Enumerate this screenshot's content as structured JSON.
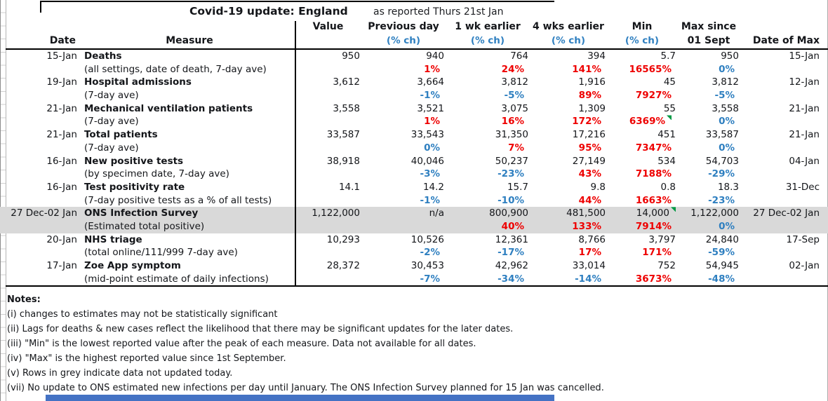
{
  "title": {
    "main": "Covid-19 update: England",
    "sub": "as reported Thurs 21st Jan"
  },
  "header": {
    "date": "Date",
    "measure": "Measure",
    "value": "Value",
    "cols": [
      {
        "line1": "Previous day",
        "line2": "(% ch)"
      },
      {
        "line1": "1 wk earlier",
        "line2": "(% ch)"
      },
      {
        "line1": "4 wks earlier",
        "line2": "(% ch)"
      },
      {
        "line1": "Min",
        "line2": "(% ch)"
      },
      {
        "line1": "Max since",
        "line2": "01 Sept"
      }
    ],
    "date_of_max": "Date of Max"
  },
  "rows": [
    {
      "date": "15-Jan",
      "measure": "Deaths",
      "detail": "(all settings, date of death, 7-day ave)",
      "value": "950",
      "prev": {
        "v": "940",
        "pct": "1%",
        "c": "red"
      },
      "wk1": {
        "v": "764",
        "pct": "24%",
        "c": "red"
      },
      "wk4": {
        "v": "394",
        "pct": "141%",
        "c": "red"
      },
      "min": {
        "v": "5.7",
        "pct": "16565%",
        "c": "red",
        "flag": ""
      },
      "max": {
        "v": "950",
        "pct": "0%",
        "c": "blue"
      },
      "dateOfMax": "15-Jan",
      "grey": false
    },
    {
      "date": "19-Jan",
      "measure": "Hospital admissions",
      "detail": "(7-day ave)",
      "value": "3,612",
      "prev": {
        "v": "3,664",
        "pct": "-1%",
        "c": "blue"
      },
      "wk1": {
        "v": "3,812",
        "pct": "-5%",
        "c": "blue"
      },
      "wk4": {
        "v": "1,916",
        "pct": "89%",
        "c": "red"
      },
      "min": {
        "v": "45",
        "pct": "7927%",
        "c": "red",
        "flag": ""
      },
      "max": {
        "v": "3,812",
        "pct": "-5%",
        "c": "blue"
      },
      "dateOfMax": "12-Jan",
      "grey": false
    },
    {
      "date": "21-Jan",
      "measure": "Mechanical ventilation patients",
      "detail": "(7-day ave)",
      "value": "3,558",
      "prev": {
        "v": "3,521",
        "pct": "1%",
        "c": "red"
      },
      "wk1": {
        "v": "3,075",
        "pct": "16%",
        "c": "red"
      },
      "wk4": {
        "v": "1,309",
        "pct": "172%",
        "c": "red"
      },
      "min": {
        "v": "55",
        "pct": "6369%",
        "c": "red",
        "flag": "pct"
      },
      "max": {
        "v": "3,558",
        "pct": "0%",
        "c": "blue"
      },
      "dateOfMax": "21-Jan",
      "grey": false
    },
    {
      "date": "21-Jan",
      "measure": "Total patients",
      "detail": "(7-day ave)",
      "value": "33,587",
      "prev": {
        "v": "33,543",
        "pct": "0%",
        "c": "blue"
      },
      "wk1": {
        "v": "31,350",
        "pct": "7%",
        "c": "red"
      },
      "wk4": {
        "v": "17,216",
        "pct": "95%",
        "c": "red"
      },
      "min": {
        "v": "451",
        "pct": "7347%",
        "c": "red",
        "flag": ""
      },
      "max": {
        "v": "33,587",
        "pct": "0%",
        "c": "blue"
      },
      "dateOfMax": "21-Jan",
      "grey": false
    },
    {
      "date": "16-Jan",
      "measure": "New positive tests",
      "detail": "(by specimen date, 7-day ave)",
      "value": "38,918",
      "prev": {
        "v": "40,046",
        "pct": "-3%",
        "c": "blue"
      },
      "wk1": {
        "v": "50,237",
        "pct": "-23%",
        "c": "blue"
      },
      "wk4": {
        "v": "27,149",
        "pct": "43%",
        "c": "red"
      },
      "min": {
        "v": "534",
        "pct": "7188%",
        "c": "red",
        "flag": ""
      },
      "max": {
        "v": "54,703",
        "pct": "-29%",
        "c": "blue"
      },
      "dateOfMax": "04-Jan",
      "grey": false
    },
    {
      "date": "16-Jan",
      "measure": "Test positivity rate",
      "detail": "(7-day positive tests as a % of all tests)",
      "value": "14.1",
      "prev": {
        "v": "14.2",
        "pct": "-1%",
        "c": "blue"
      },
      "wk1": {
        "v": "15.7",
        "pct": "-10%",
        "c": "blue"
      },
      "wk4": {
        "v": "9.8",
        "pct": "44%",
        "c": "red"
      },
      "min": {
        "v": "0.8",
        "pct": "1663%",
        "c": "red",
        "flag": ""
      },
      "max": {
        "v": "18.3",
        "pct": "-23%",
        "c": "blue"
      },
      "dateOfMax": "31-Dec",
      "grey": false
    },
    {
      "date": "27 Dec-02 Jan",
      "measure": "ONS Infection Survey",
      "detail": "(Estimated total positive)",
      "value": "1,122,000",
      "prev": {
        "v": "n/a",
        "pct": "",
        "c": ""
      },
      "wk1": {
        "v": "800,900",
        "pct": "40%",
        "c": "red"
      },
      "wk4": {
        "v": "481,500",
        "pct": "133%",
        "c": "red"
      },
      "min": {
        "v": "14,000",
        "pct": "7914%",
        "c": "red",
        "flag": "value"
      },
      "max": {
        "v": "1,122,000",
        "pct": "0%",
        "c": "blue"
      },
      "dateOfMax": "27 Dec-02 Jan",
      "grey": true
    },
    {
      "date": "20-Jan",
      "measure": "NHS triage",
      "detail": "(total online/111/999 7-day ave)",
      "value": "10,293",
      "prev": {
        "v": "10,526",
        "pct": "-2%",
        "c": "blue"
      },
      "wk1": {
        "v": "12,361",
        "pct": "-17%",
        "c": "blue"
      },
      "wk4": {
        "v": "8,766",
        "pct": "17%",
        "c": "red"
      },
      "min": {
        "v": "3,797",
        "pct": "171%",
        "c": "red",
        "flag": ""
      },
      "max": {
        "v": "24,840",
        "pct": "-59%",
        "c": "blue"
      },
      "dateOfMax": "17-Sep",
      "grey": false
    },
    {
      "date": "17-Jan",
      "measure": "Zoe App symptom",
      "detail": "(mid-point estimate of daily infections)",
      "value": "28,372",
      "prev": {
        "v": "30,453",
        "pct": "-7%",
        "c": "blue"
      },
      "wk1": {
        "v": "42,962",
        "pct": "-34%",
        "c": "blue"
      },
      "wk4": {
        "v": "33,014",
        "pct": "-14%",
        "c": "blue"
      },
      "min": {
        "v": "752",
        "pct": "3673%",
        "c": "red",
        "flag": ""
      },
      "max": {
        "v": "54,945",
        "pct": "-48%",
        "c": "blue"
      },
      "dateOfMax": "02-Jan",
      "grey": false
    }
  ],
  "notes": {
    "heading": "Notes:",
    "items": [
      "(i) changes to estimates may not be statistically significant",
      "(ii) Lags for deaths & new cases reflect the likelihood that there may be significant updates for the later dates.",
      "(iii) \"Min\" is the lowest reported value after the peak of each measure. Data not available for all dates.",
      "(iv) \"Max\" is the highest reported value since 1st September.",
      "(v) Rows in grey indicate data not updated today.",
      "(vii) No update to ONS estimated new infections per day until January. The ONS Infection Survey planned for 15 Jan was cancelled."
    ]
  },
  "colors": {
    "increase_pct": "#ee0000",
    "decrease_pct": "#2e7fc0",
    "grey_row": "#d9d9d9",
    "comment_flag": "#009a44",
    "bottom_bar": "#4472c4"
  }
}
